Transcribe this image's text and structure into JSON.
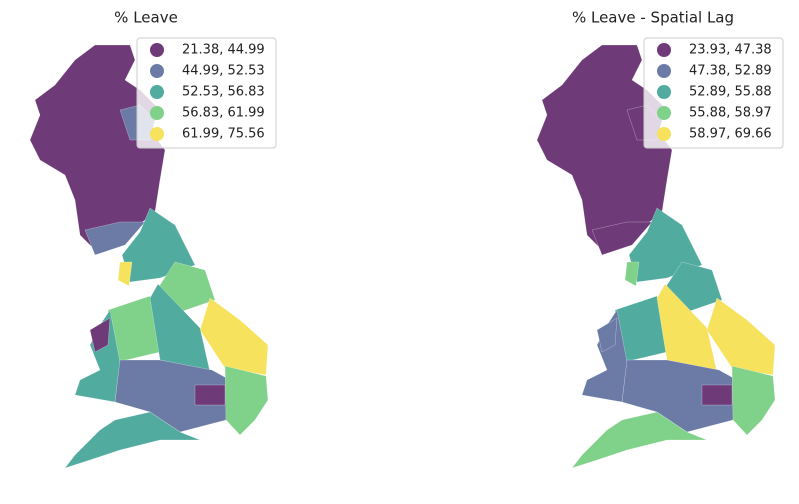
{
  "panels": [
    {
      "title": "% Leave",
      "legend": [
        {
          "label": "21.38, 44.99",
          "color": "#6e3a78"
        },
        {
          "label": "44.99, 52.53",
          "color": "#6b7ba6"
        },
        {
          "label": "52.53, 56.83",
          "color": "#52ab9f"
        },
        {
          "label": "56.83, 61.99",
          "color": "#80d189"
        },
        {
          "label": "61.99, 75.56",
          "color": "#f6e25c"
        }
      ]
    },
    {
      "title": "% Leave - Spatial Lag",
      "legend": [
        {
          "label": "23.93, 47.38",
          "color": "#6e3a78"
        },
        {
          "label": "47.38, 52.89",
          "color": "#6b7ba6"
        },
        {
          "label": "52.89, 55.88",
          "color": "#52ab9f"
        },
        {
          "label": "55.88, 58.97",
          "color": "#80d189"
        },
        {
          "label": "58.97, 69.66",
          "color": "#f6e25c"
        }
      ]
    }
  ]
}
